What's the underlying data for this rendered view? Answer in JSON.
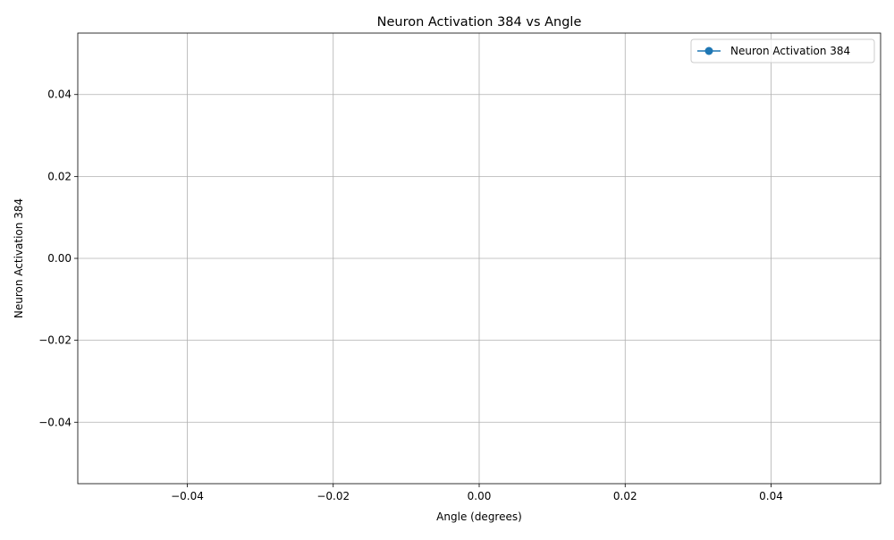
{
  "chart_data": {
    "type": "line",
    "title": "Neuron Activation 384 vs Angle",
    "xlabel": "Angle (degrees)",
    "ylabel": "Neuron Activation 384",
    "xlim": [
      -0.055,
      0.055
    ],
    "ylim": [
      -0.055,
      0.055
    ],
    "x_ticks": [
      -0.04,
      -0.02,
      0.0,
      0.02,
      0.04
    ],
    "x_tick_labels": [
      "−0.04",
      "−0.02",
      "0.00",
      "0.02",
      "0.04"
    ],
    "y_ticks": [
      -0.04,
      -0.02,
      0.0,
      0.02,
      0.04
    ],
    "y_tick_labels": [
      "−0.04",
      "−0.02",
      "0.00",
      "0.02",
      "0.04"
    ],
    "grid": true,
    "legend_position": "top-right",
    "series": [
      {
        "name": "Neuron Activation 384",
        "color": "#1f77b4",
        "marker": "circle",
        "x": [],
        "y": []
      }
    ]
  }
}
